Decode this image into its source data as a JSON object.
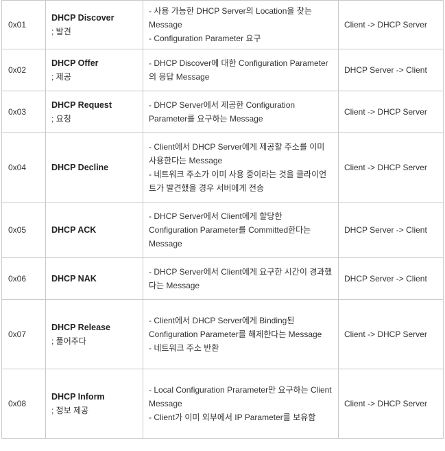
{
  "rows": [
    {
      "code": "0x01",
      "name": "DHCP Discover",
      "sub": "; 발견",
      "desc": [
        "- 사용 가능한 DHCP Server의 Location을 찾는 Message",
        "- Configuration Parameter 요구"
      ],
      "dir": "Client -> DHCP Server"
    },
    {
      "code": "0x02",
      "name": "DHCP Offer",
      "sub": "; 제공",
      "desc": [
        "- DHCP Discover에 대한 Configuration Parameter의 응답 Message"
      ],
      "dir": "DHCP Server -> Client"
    },
    {
      "code": "0x03",
      "name": "DHCP Request",
      "sub": "; 요청",
      "desc": [
        "- DHCP Server에서 제공한 Configuration Parameter를 요구하는 Message"
      ],
      "dir": "Client -> DHCP Server"
    },
    {
      "code": "0x04",
      "name": "DHCP Decline",
      "sub": "",
      "desc": [
        "- Client에서 DHCP Server에게 제공할 주소를 이미 사용한다는 Message",
        "- 네트워크 주소가 이미 사용 중이라는 것을 클라이언트가 발견했을 경우 서버에게 전송"
      ],
      "dir": "Client -> DHCP Server"
    },
    {
      "code": "0x05",
      "name": "DHCP ACK",
      "sub": "",
      "desc": [
        "- DHCP Server에서 Client에게 할당한 Configuration Parameter를 Committed한다는 Message"
      ],
      "dir": "DHCP Server -> Client"
    },
    {
      "code": "0x06",
      "name": "DHCP NAK",
      "sub": "",
      "desc": [
        "- DHCP Server에서 Client에게 요구한 시간이 경과했다는 Message"
      ],
      "dir": "DHCP Server -> Client"
    },
    {
      "code": "0x07",
      "name": "DHCP Release",
      "sub": "; 풀어주다",
      "desc": [
        "- Client에서 DHCP Server에게 Binding된 Configuration Parameter를 해제한다는 Message",
        "- 네트워크 주소 반환"
      ],
      "dir": "Client -> DHCP Server"
    },
    {
      "code": "0x08",
      "name": "DHCP Inform",
      "sub": "; 정보 제공",
      "desc": [
        "- Local Configuration Prarameter만 요구하는 Client Message",
        "- Client가 이미 외부에서 IP Parameter를 보유함"
      ],
      "dir": "Client -> DHCP Server"
    }
  ]
}
